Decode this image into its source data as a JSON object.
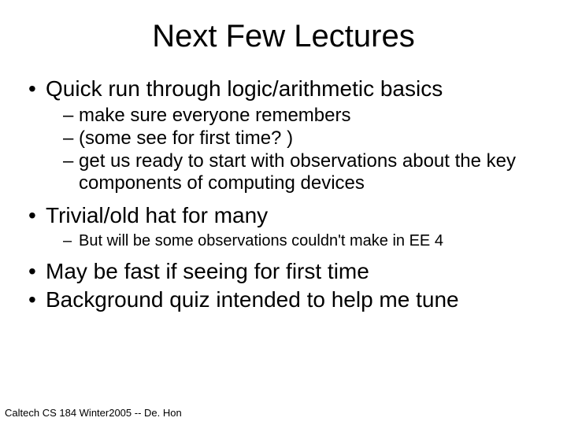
{
  "title": "Next Few Lectures",
  "footer": "Caltech CS 184 Winter2005 -- De. Hon",
  "bullets": {
    "b1": "Quick run through logic/arithmetic basics",
    "b1_1": "make sure everyone remembers",
    "b1_2": "(some see for first time? )",
    "b1_3": "get us ready to start with observations about the key components of computing devices",
    "b2": "Trivial/old hat for many",
    "b2_1": "But will be some observations couldn't make in EE 4",
    "b3": "May be fast if seeing for first time",
    "b4": "Background quiz intended to help me tune"
  },
  "colors": {
    "background": "#ffffff",
    "text": "#000000"
  },
  "typography": {
    "title_fontsize": 40,
    "bullet1_fontsize": 28,
    "bullet2_fontsize": 24,
    "bullet2_small_fontsize": 20,
    "footer_fontsize": 13,
    "font_family": "Arial"
  }
}
